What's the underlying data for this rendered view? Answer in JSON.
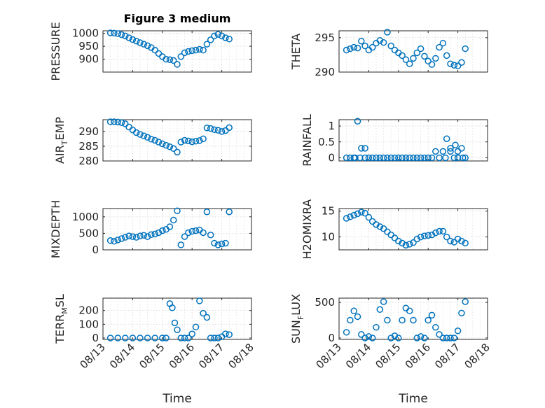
{
  "figure": {
    "title": "Figure 3 medium",
    "marker_color": "#0072bd"
  },
  "chart_data": [
    {
      "type": "scatter",
      "title": "Figure 3 medium",
      "xlabel": "",
      "ylabel": "PRESSURE",
      "ylabel_parts": [
        "PRESSURE"
      ],
      "xlim": [
        "08/13",
        "08/18"
      ],
      "ylim": [
        850,
        1010
      ],
      "yticks": [
        900,
        950,
        1000
      ],
      "xticks": [
        "08/13",
        "08/14",
        "08/15",
        "08/16",
        "08/17",
        "08/18"
      ],
      "show_xticklabels": false,
      "x": [
        "08/13 06:00",
        "08/13 09:00",
        "08/13 12:00",
        "08/13 15:00",
        "08/13 18:00",
        "08/13 21:00",
        "08/14 00:00",
        "08/14 03:00",
        "08/14 06:00",
        "08/14 09:00",
        "08/14 12:00",
        "08/14 15:00",
        "08/14 18:00",
        "08/14 21:00",
        "08/15 00:00",
        "08/15 03:00",
        "08/15 06:00",
        "08/15 09:00",
        "08/15 12:00",
        "08/15 15:00",
        "08/15 18:00",
        "08/15 21:00",
        "08/16 00:00",
        "08/16 03:00",
        "08/16 06:00",
        "08/16 09:00",
        "08/16 12:00",
        "08/16 15:00",
        "08/16 18:00",
        "08/16 21:00",
        "08/17 00:00",
        "08/17 03:00",
        "08/17 06:00"
      ],
      "y": [
        1002,
        1001,
        999,
        995,
        990,
        983,
        976,
        970,
        964,
        958,
        952,
        945,
        935,
        922,
        910,
        900,
        898,
        895,
        880,
        910,
        925,
        930,
        933,
        935,
        938,
        935,
        958,
        975,
        990,
        996,
        990,
        983,
        978
      ]
    },
    {
      "type": "scatter",
      "xlabel": "",
      "ylabel": "THETA",
      "ylabel_parts": [
        "THETA"
      ],
      "xlim": [
        "08/13",
        "08/18"
      ],
      "ylim": [
        290,
        296
      ],
      "yticks": [
        290,
        295
      ],
      "xticks": [
        "08/13",
        "08/14",
        "08/15",
        "08/16",
        "08/17",
        "08/18"
      ],
      "show_xticklabels": false,
      "x": [
        "08/13 06:00",
        "08/13 09:00",
        "08/13 12:00",
        "08/13 15:00",
        "08/13 18:00",
        "08/13 21:00",
        "08/14 00:00",
        "08/14 03:00",
        "08/14 06:00",
        "08/14 09:00",
        "08/14 12:00",
        "08/14 15:00",
        "08/14 18:00",
        "08/14 21:00",
        "08/15 00:00",
        "08/15 03:00",
        "08/15 06:00",
        "08/15 09:00",
        "08/15 12:00",
        "08/15 15:00",
        "08/15 18:00",
        "08/15 21:00",
        "08/16 00:00",
        "08/16 03:00",
        "08/16 06:00",
        "08/16 09:00",
        "08/16 12:00",
        "08/16 15:00",
        "08/16 18:00",
        "08/16 21:00",
        "08/17 00:00",
        "08/17 03:00",
        "08/17 06:00"
      ],
      "y": [
        293.2,
        293.4,
        293.6,
        293.5,
        294.5,
        293.8,
        293.2,
        293.6,
        294.2,
        294.6,
        294.3,
        295.8,
        293.8,
        293.2,
        292.8,
        292.4,
        291.8,
        291.2,
        292.0,
        292.8,
        293.4,
        292.3,
        291.6,
        291.1,
        292.0,
        293.6,
        294.2,
        292.4,
        291.2,
        291.0,
        290.9,
        291.4,
        293.4
      ]
    },
    {
      "type": "scatter",
      "xlabel": "",
      "ylabel": "AIR_TEMP",
      "ylabel_parts": [
        "AIR",
        "T",
        "EMP"
      ],
      "xlim": [
        "08/13",
        "08/18"
      ],
      "ylim": [
        280,
        294
      ],
      "yticks": [
        280,
        285,
        290
      ],
      "xticks": [
        "08/13",
        "08/14",
        "08/15",
        "08/16",
        "08/17",
        "08/18"
      ],
      "show_xticklabels": false,
      "x": [
        "08/13 06:00",
        "08/13 09:00",
        "08/13 12:00",
        "08/13 15:00",
        "08/13 18:00",
        "08/13 21:00",
        "08/14 00:00",
        "08/14 03:00",
        "08/14 06:00",
        "08/14 09:00",
        "08/14 12:00",
        "08/14 15:00",
        "08/14 18:00",
        "08/14 21:00",
        "08/15 00:00",
        "08/15 03:00",
        "08/15 06:00",
        "08/15 09:00",
        "08/15 12:00",
        "08/15 15:00",
        "08/15 18:00",
        "08/15 21:00",
        "08/16 00:00",
        "08/16 03:00",
        "08/16 06:00",
        "08/16 09:00",
        "08/16 12:00",
        "08/16 15:00",
        "08/16 18:00",
        "08/16 21:00",
        "08/17 00:00",
        "08/17 03:00",
        "08/17 06:00"
      ],
      "y": [
        293.3,
        293.3,
        293.2,
        293.0,
        292.6,
        291.5,
        290.5,
        289.6,
        289.0,
        288.5,
        288.0,
        287.4,
        287.0,
        286.4,
        285.8,
        285.3,
        284.8,
        284.2,
        283.0,
        286.4,
        287.0,
        286.8,
        286.5,
        286.7,
        286.9,
        287.5,
        291.2,
        291.0,
        290.6,
        290.4,
        290.0,
        290.3,
        291.3
      ]
    },
    {
      "type": "scatter",
      "xlabel": "",
      "ylabel": "RAINFALL",
      "ylabel_parts": [
        "RAINFALL"
      ],
      "xlim": [
        "08/13",
        "08/18"
      ],
      "ylim": [
        -0.1,
        1.2
      ],
      "yticks": [
        0,
        0.5,
        1
      ],
      "xticks": [
        "08/13",
        "08/14",
        "08/15",
        "08/16",
        "08/17",
        "08/18"
      ],
      "show_xticklabels": false,
      "x": [
        "08/13 06:00",
        "08/13 09:00",
        "08/13 12:00",
        "08/13 15:00",
        "08/13 18:00",
        "08/13 21:00",
        "08/14 00:00",
        "08/14 03:00",
        "08/14 06:00",
        "08/14 09:00",
        "08/14 12:00",
        "08/14 15:00",
        "08/14 18:00",
        "08/14 21:00",
        "08/15 00:00",
        "08/15 03:00",
        "08/15 06:00",
        "08/15 09:00",
        "08/15 12:00",
        "08/15 15:00",
        "08/15 18:00",
        "08/15 21:00",
        "08/16 00:00",
        "08/16 03:00",
        "08/16 06:00",
        "08/16 09:00",
        "08/16 12:00",
        "08/16 15:00",
        "08/16 18:00",
        "08/16 21:00",
        "08/17 00:00",
        "08/17 03:00",
        "08/17 06:00",
        "08/13 13:00",
        "08/13 17:00",
        "08/13 21:00",
        "08/16 14:00",
        "08/16 18:00",
        "08/16 22:00",
        "08/17 00:00",
        "08/17 04:00"
      ],
      "y": [
        0,
        0,
        0,
        1.15,
        0.3,
        0.3,
        0,
        0,
        0,
        0,
        0,
        0,
        0,
        0,
        0,
        0,
        0,
        0,
        0,
        0,
        0,
        0,
        0,
        0,
        0.2,
        0,
        0.2,
        0.6,
        0.3,
        0,
        0,
        0.3,
        0,
        0,
        0,
        0,
        0,
        0.2,
        0.4,
        0.2,
        0
      ]
    },
    {
      "type": "scatter",
      "xlabel": "",
      "ylabel": "MIXDEPTH",
      "ylabel_parts": [
        "MIXDEPTH"
      ],
      "xlim": [
        "08/13",
        "08/18"
      ],
      "ylim": [
        0,
        1250
      ],
      "yticks": [
        0,
        500,
        1000
      ],
      "xticks": [
        "08/13",
        "08/14",
        "08/15",
        "08/16",
        "08/17",
        "08/18"
      ],
      "show_xticklabels": false,
      "x": [
        "08/13 06:00",
        "08/13 09:00",
        "08/13 12:00",
        "08/13 15:00",
        "08/13 18:00",
        "08/13 21:00",
        "08/14 00:00",
        "08/14 03:00",
        "08/14 06:00",
        "08/14 09:00",
        "08/14 12:00",
        "08/14 15:00",
        "08/14 18:00",
        "08/14 21:00",
        "08/15 00:00",
        "08/15 03:00",
        "08/15 06:00",
        "08/15 09:00",
        "08/15 12:00",
        "08/15 15:00",
        "08/15 18:00",
        "08/15 21:00",
        "08/16 00:00",
        "08/16 03:00",
        "08/16 06:00",
        "08/16 09:00",
        "08/16 12:00",
        "08/16 15:00",
        "08/16 18:00",
        "08/16 21:00",
        "08/17 00:00",
        "08/17 03:00",
        "08/17 06:00"
      ],
      "y": [
        280,
        260,
        300,
        340,
        380,
        420,
        400,
        380,
        420,
        440,
        400,
        460,
        480,
        520,
        580,
        620,
        700,
        900,
        1180,
        150,
        400,
        520,
        560,
        580,
        600,
        520,
        1150,
        450,
        200,
        150,
        180,
        200,
        1150
      ]
    },
    {
      "type": "scatter",
      "xlabel": "",
      "ylabel": "H2OMIXRA",
      "ylabel_parts": [
        "H2OMIXRA"
      ],
      "xlim": [
        "08/13",
        "08/18"
      ],
      "ylim": [
        7.5,
        15.5
      ],
      "yticks": [
        10,
        15
      ],
      "xticks": [
        "08/13",
        "08/14",
        "08/15",
        "08/16",
        "08/17",
        "08/18"
      ],
      "show_xticklabels": false,
      "x": [
        "08/13 06:00",
        "08/13 09:00",
        "08/13 12:00",
        "08/13 15:00",
        "08/13 18:00",
        "08/13 21:00",
        "08/14 00:00",
        "08/14 03:00",
        "08/14 06:00",
        "08/14 09:00",
        "08/14 12:00",
        "08/14 15:00",
        "08/14 18:00",
        "08/14 21:00",
        "08/15 00:00",
        "08/15 03:00",
        "08/15 06:00",
        "08/15 09:00",
        "08/15 12:00",
        "08/15 15:00",
        "08/15 18:00",
        "08/15 21:00",
        "08/16 00:00",
        "08/16 03:00",
        "08/16 06:00",
        "08/16 09:00",
        "08/16 12:00",
        "08/16 15:00",
        "08/16 18:00",
        "08/16 21:00",
        "08/17 00:00",
        "08/17 03:00",
        "08/17 06:00"
      ],
      "y": [
        13.6,
        13.9,
        14.2,
        14.5,
        14.8,
        14.6,
        13.8,
        13.0,
        12.4,
        12.0,
        11.6,
        11.0,
        10.4,
        9.8,
        9.2,
        8.8,
        8.4,
        8.6,
        8.9,
        9.6,
        10.0,
        10.2,
        10.3,
        10.4,
        10.8,
        11.1,
        11.1,
        10.0,
        9.2,
        9.0,
        9.6,
        9.2,
        8.8
      ]
    },
    {
      "type": "scatter",
      "xlabel": "Time",
      "ylabel": "TERR_MSL",
      "ylabel_parts": [
        "TERR",
        "M",
        "SL"
      ],
      "xlim": [
        "08/13",
        "08/18"
      ],
      "ylim": [
        -10,
        290
      ],
      "yticks": [
        0,
        100,
        200
      ],
      "xticks": [
        "08/13",
        "08/14",
        "08/15",
        "08/16",
        "08/17",
        "08/18"
      ],
      "show_xticklabels": true,
      "x": [
        "08/13 06:00",
        "08/13 12:00",
        "08/13 18:00",
        "08/14 00:00",
        "08/14 06:00",
        "08/14 12:00",
        "08/14 18:00",
        "08/15 00:00",
        "08/15 03:00",
        "08/15 06:00",
        "08/15 08:00",
        "08/15 10:00",
        "08/15 12:00",
        "08/15 15:00",
        "08/15 18:00",
        "08/15 21:00",
        "08/16 00:00",
        "08/16 03:00",
        "08/16 06:00",
        "08/16 09:00",
        "08/16 12:00",
        "08/16 15:00",
        "08/16 18:00",
        "08/16 21:00",
        "08/17 00:00",
        "08/17 03:00",
        "08/17 06:00"
      ],
      "y": [
        0,
        0,
        0,
        0,
        0,
        0,
        0,
        0,
        0,
        250,
        220,
        110,
        60,
        0,
        0,
        0,
        30,
        80,
        270,
        180,
        150,
        0,
        0,
        0,
        10,
        30,
        25
      ]
    },
    {
      "type": "scatter",
      "xlabel": "Time",
      "ylabel": "SUN_FLUX",
      "ylabel_parts": [
        "SUN",
        "F",
        "LUX"
      ],
      "xlim": [
        "08/13",
        "08/18"
      ],
      "ylim": [
        -20,
        560
      ],
      "yticks": [
        0,
        500
      ],
      "xticks": [
        "08/13",
        "08/14",
        "08/15",
        "08/16",
        "08/17",
        "08/18"
      ],
      "show_xticklabels": true,
      "x": [
        "08/13 06:00",
        "08/13 09:00",
        "08/13 12:00",
        "08/13 15:00",
        "08/13 18:00",
        "08/13 21:00",
        "08/14 00:00",
        "08/14 03:00",
        "08/14 06:00",
        "08/14 09:00",
        "08/14 12:00",
        "08/14 15:00",
        "08/14 18:00",
        "08/14 21:00",
        "08/15 00:00",
        "08/15 03:00",
        "08/15 06:00",
        "08/15 09:00",
        "08/15 12:00",
        "08/15 15:00",
        "08/15 18:00",
        "08/15 21:00",
        "08/16 00:00",
        "08/16 03:00",
        "08/16 06:00",
        "08/16 09:00",
        "08/16 12:00",
        "08/16 15:00",
        "08/16 18:00",
        "08/16 21:00",
        "08/17 00:00",
        "08/17 03:00",
        "08/17 06:00"
      ],
      "y": [
        80,
        250,
        380,
        300,
        50,
        0,
        20,
        0,
        150,
        400,
        510,
        250,
        0,
        30,
        0,
        250,
        420,
        380,
        250,
        0,
        20,
        0,
        250,
        320,
        150,
        50,
        0,
        0,
        0,
        0,
        100,
        350,
        510
      ]
    }
  ]
}
